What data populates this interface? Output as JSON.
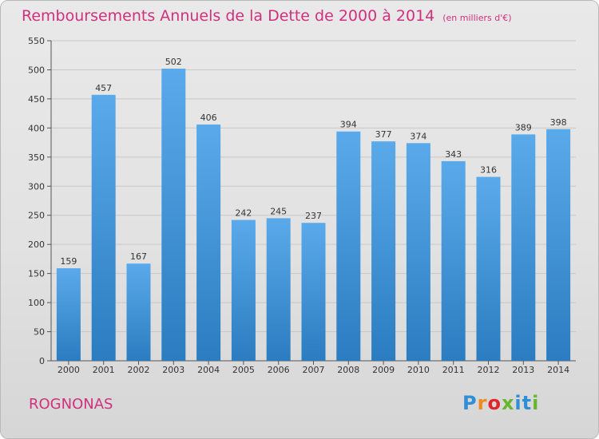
{
  "header": {
    "title": "Remboursements Annuels de la Dette de 2000 à 2014",
    "unit": "(en milliers d'€)"
  },
  "footer": {
    "city": "ROGNONAS",
    "logo": [
      "P",
      "r",
      "o",
      "x",
      "i",
      "t",
      "i"
    ]
  },
  "colors": {
    "title": "#d0307e",
    "bar_top": "#5aaaeb",
    "bar_bottom": "#2b7cc0",
    "grid": "#c8c8c8"
  },
  "chart_data": {
    "type": "bar",
    "categories": [
      "2000",
      "2001",
      "2002",
      "2003",
      "2004",
      "2005",
      "2006",
      "2007",
      "2008",
      "2009",
      "2010",
      "2011",
      "2012",
      "2013",
      "2014"
    ],
    "values": [
      159,
      457,
      167,
      502,
      406,
      242,
      245,
      237,
      394,
      377,
      374,
      343,
      316,
      389,
      398
    ],
    "title": "Remboursements Annuels de la Dette de 2000 à 2014",
    "subtitle": "(en milliers d'€)",
    "xlabel": "",
    "ylabel": "",
    "ylim": [
      0,
      550
    ],
    "yticks": [
      0,
      50,
      100,
      150,
      200,
      250,
      300,
      350,
      400,
      450,
      500,
      550
    ],
    "grid": true,
    "data_labels": true
  }
}
